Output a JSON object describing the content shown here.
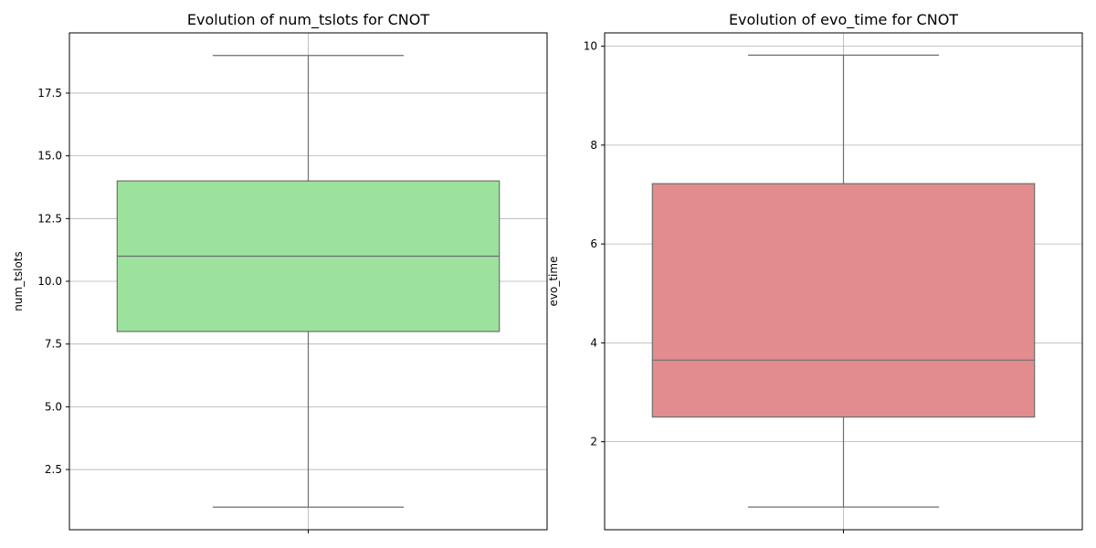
{
  "chart_data": [
    {
      "type": "box",
      "title": "Evolution of num_tslots for CNOT",
      "xlabel": "",
      "ylabel": "num_tslots",
      "ylim": [
        0.1,
        19.9
      ],
      "yticks": [
        2.5,
        5.0,
        7.5,
        10.0,
        12.5,
        15.0,
        17.5
      ],
      "ytick_labels": [
        "2.5",
        "5.0",
        "7.5",
        "10.0",
        "12.5",
        "15.0",
        "17.5"
      ],
      "grid": true,
      "color": "#9ce29d",
      "box": {
        "whisker_low": 1,
        "q1": 8,
        "median": 11,
        "q3": 14,
        "whisker_high": 19
      }
    },
    {
      "type": "box",
      "title": "Evolution of evo_time for CNOT",
      "xlabel": "",
      "ylabel": "evo_time",
      "ylim": [
        0.22,
        10.27
      ],
      "yticks": [
        2,
        4,
        6,
        8,
        10
      ],
      "ytick_labels": [
        "2",
        "4",
        "6",
        "8",
        "10"
      ],
      "grid": true,
      "color": "#e28c8e",
      "box": {
        "whisker_low": 0.68,
        "q1": 2.5,
        "median": 3.65,
        "q3": 7.22,
        "whisker_high": 9.82
      }
    }
  ]
}
